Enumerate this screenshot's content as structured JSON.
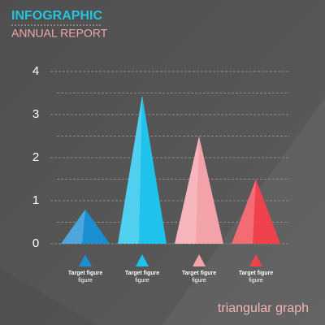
{
  "chart_data": {
    "type": "triangle-bar",
    "title": "INFOGRAPHIC",
    "subtitle": "ANNUAL REPORT",
    "caption": "triangular graph",
    "categories": [
      "Target figure",
      "Target figure",
      "Target figure",
      "Target figure"
    ],
    "category_sublabels": [
      "figure",
      "figure",
      "figure",
      "figure"
    ],
    "values": [
      0.8,
      3.45,
      2.5,
      1.5
    ],
    "colors": [
      "#1b8fd2",
      "#1fc2ea",
      "#f4a2a9",
      "#f0424c"
    ],
    "ylim": [
      0,
      4
    ],
    "yticks": [
      0,
      1,
      2,
      3,
      4
    ],
    "minor_yticks": [
      0.5,
      1.5,
      2.5,
      3.5
    ],
    "grid": true
  }
}
